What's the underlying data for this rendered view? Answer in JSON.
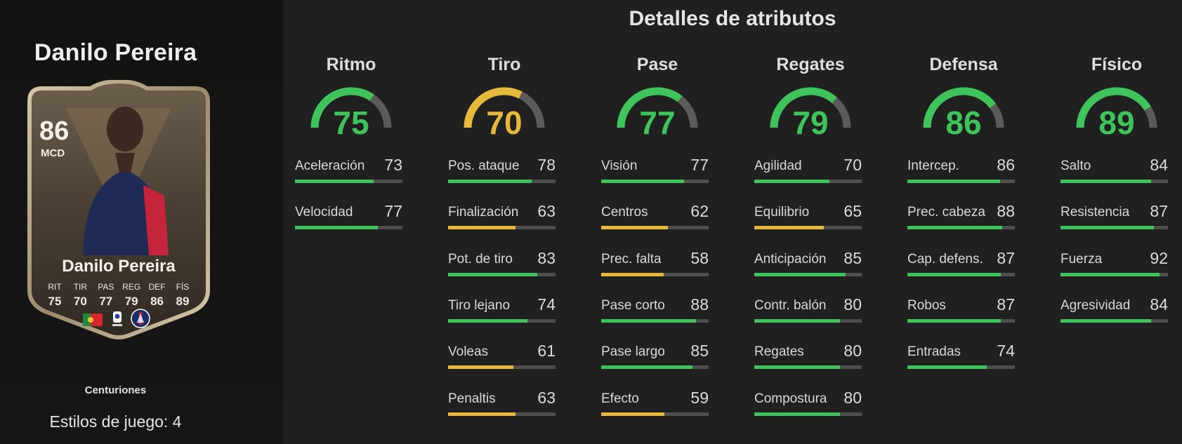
{
  "player": {
    "name": "Danilo Pereira",
    "card": {
      "rating": "86",
      "position": "MCD",
      "name": "Danilo Pereira",
      "stat_labels": [
        "RIT",
        "TIR",
        "PAS",
        "REG",
        "DEF",
        "FÍS"
      ],
      "stat_values": [
        "75",
        "70",
        "77",
        "79",
        "86",
        "89"
      ]
    },
    "program": "Centuriones",
    "playstyles": "Estilos de juego: 4"
  },
  "title": "Detalles de atributos",
  "colors": {
    "green": "#3ec45a",
    "yellow": "#e7b93a",
    "track": "#4e4f4e",
    "gauge_track": "#5a5b5a"
  },
  "categories": [
    {
      "name": "Ritmo",
      "value": 75,
      "attributes": [
        {
          "name": "Aceleración",
          "value": 73
        },
        {
          "name": "Velocidad",
          "value": 77
        }
      ]
    },
    {
      "name": "Tiro",
      "value": 70,
      "attributes": [
        {
          "name": "Pos. ataque",
          "value": 78
        },
        {
          "name": "Finalización",
          "value": 63
        },
        {
          "name": "Pot. de tiro",
          "value": 83
        },
        {
          "name": "Tiro lejano",
          "value": 74
        },
        {
          "name": "Voleas",
          "value": 61
        },
        {
          "name": "Penaltis",
          "value": 63
        }
      ]
    },
    {
      "name": "Pase",
      "value": 77,
      "attributes": [
        {
          "name": "Visión",
          "value": 77
        },
        {
          "name": "Centros",
          "value": 62
        },
        {
          "name": "Prec. falta",
          "value": 58
        },
        {
          "name": "Pase corto",
          "value": 88
        },
        {
          "name": "Pase largo",
          "value": 85
        },
        {
          "name": "Efecto",
          "value": 59
        }
      ]
    },
    {
      "name": "Regates",
      "value": 79,
      "attributes": [
        {
          "name": "Agilidad",
          "value": 70
        },
        {
          "name": "Equilibrio",
          "value": 65
        },
        {
          "name": "Anticipación",
          "value": 85
        },
        {
          "name": "Contr. balón",
          "value": 80
        },
        {
          "name": "Regates",
          "value": 80
        },
        {
          "name": "Compostura",
          "value": 80
        }
      ]
    },
    {
      "name": "Defensa",
      "value": 86,
      "attributes": [
        {
          "name": "Intercep.",
          "value": 86
        },
        {
          "name": "Prec. cabeza",
          "value": 88
        },
        {
          "name": "Cap. defens.",
          "value": 87
        },
        {
          "name": "Robos",
          "value": 87
        },
        {
          "name": "Entradas",
          "value": 74
        }
      ]
    },
    {
      "name": "Físico",
      "value": 89,
      "attributes": [
        {
          "name": "Salto",
          "value": 84
        },
        {
          "name": "Resistencia",
          "value": 87
        },
        {
          "name": "Fuerza",
          "value": 92
        },
        {
          "name": "Agresividad",
          "value": 84
        }
      ]
    }
  ]
}
